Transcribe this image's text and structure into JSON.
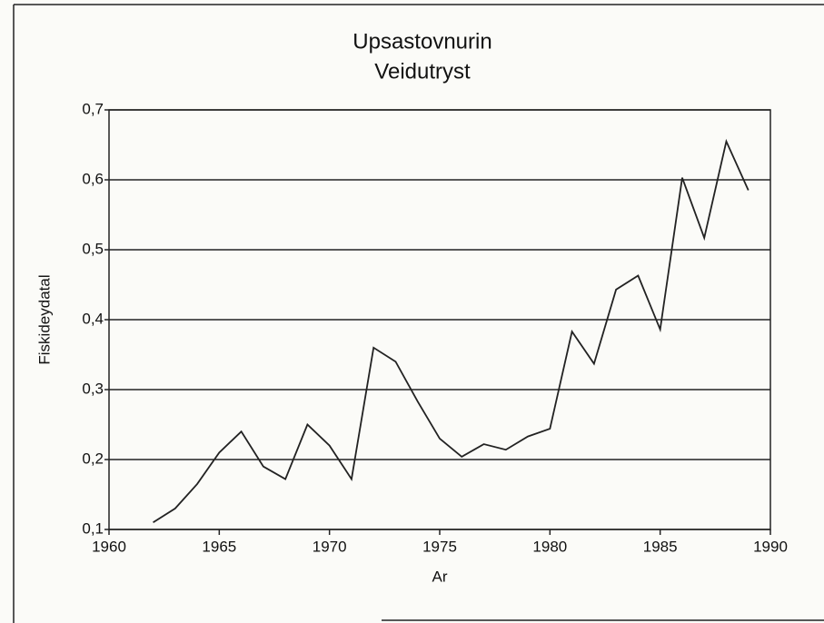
{
  "chart_data": {
    "type": "line",
    "title_lines": [
      "Upsastovnurin",
      "Veidutryst"
    ],
    "x_label": "Ar",
    "y_label": "Fiskideydatal",
    "x": [
      1962,
      1963,
      1964,
      1965,
      1966,
      1967,
      1968,
      1969,
      1970,
      1971,
      1972,
      1973,
      1974,
      1975,
      1976,
      1977,
      1978,
      1979,
      1980,
      1981,
      1982,
      1983,
      1984,
      1985,
      1986,
      1987,
      1988,
      1989
    ],
    "series": [
      {
        "color": "#222222",
        "values": [
          0.11,
          0.13,
          0.165,
          0.21,
          0.24,
          0.19,
          0.172,
          0.25,
          0.22,
          0.172,
          0.36,
          0.34,
          0.283,
          0.23,
          0.204,
          0.222,
          0.214,
          0.233,
          0.244,
          0.383,
          0.337,
          0.443,
          0.463,
          0.386,
          0.603,
          0.517,
          0.655,
          0.585
        ]
      }
    ],
    "xlim": [
      1960,
      1990
    ],
    "xticks": [
      1960,
      1965,
      1970,
      1975,
      1980,
      1985,
      1990
    ],
    "ylim": [
      0.1,
      0.7
    ],
    "yticks": [
      {
        "value": 0.1,
        "label": "0,1"
      },
      {
        "value": 0.2,
        "label": "0,2"
      },
      {
        "value": 0.3,
        "label": "0,3"
      },
      {
        "value": 0.4,
        "label": "0,4"
      },
      {
        "value": 0.5,
        "label": "0,5"
      },
      {
        "value": 0.6,
        "label": "0,6"
      },
      {
        "value": 0.7,
        "label": "0,7"
      }
    ],
    "grid": true
  }
}
